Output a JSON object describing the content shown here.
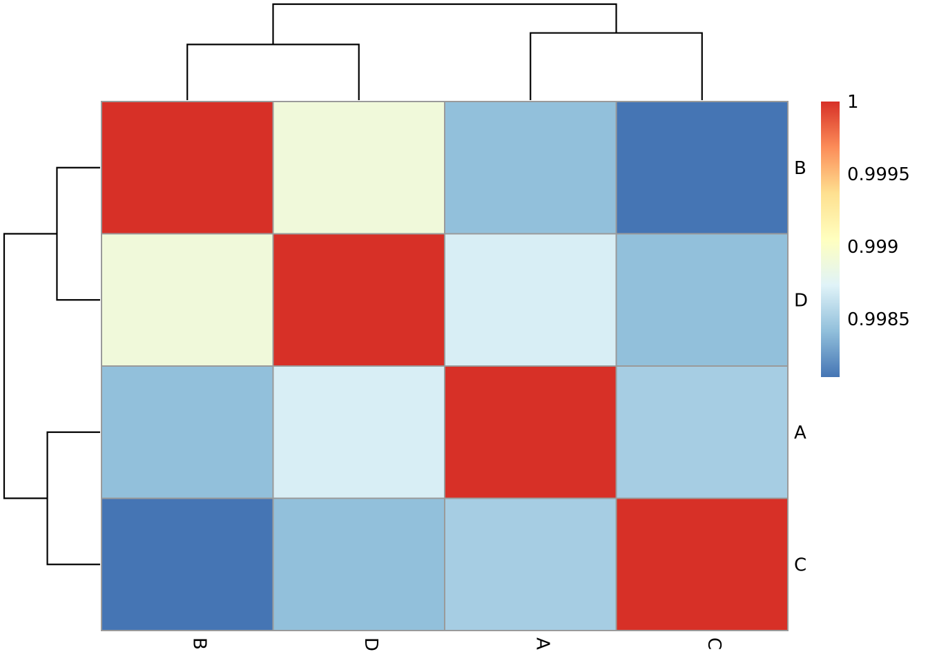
{
  "chart_data": {
    "type": "heatmap",
    "title": "",
    "row_labels": [
      "B",
      "D",
      "A",
      "C"
    ],
    "col_labels": [
      "B",
      "D",
      "A",
      "C"
    ],
    "values": [
      [
        1.0,
        0.9989,
        0.99842,
        0.9981
      ],
      [
        0.9989,
        1.0,
        0.9987,
        0.99842
      ],
      [
        0.99842,
        0.9987,
        1.0,
        0.9985
      ],
      [
        0.9981,
        0.99842,
        0.9985,
        1.0
      ]
    ],
    "colorbar": {
      "min": 0.9981,
      "max": 1.0,
      "ticks": [
        1,
        0.9995,
        0.999,
        0.9985
      ],
      "tick_labels": [
        "1",
        "0.9995",
        "0.999",
        "0.9985"
      ],
      "colors": [
        "#4575B4",
        "#91BFDB",
        "#E0F3F8",
        "#FFFFBF",
        "#FEE090",
        "#FC8D59",
        "#D73027"
      ]
    },
    "row_dendrogram": {
      "merges": [
        {
          "left": "B",
          "right": "D",
          "height": 0.45
        },
        {
          "left": "A",
          "right": "C",
          "height": 0.55
        },
        {
          "left": "B-D",
          "right": "A-C",
          "height": 1.0
        }
      ]
    },
    "col_dendrogram": {
      "merges": [
        {
          "left": "B",
          "right": "D",
          "height": 0.58
        },
        {
          "left": "A",
          "right": "C",
          "height": 0.7
        },
        {
          "left": "B-D",
          "right": "A-C",
          "height": 1.0
        }
      ]
    },
    "legend": "right",
    "grid": true
  }
}
